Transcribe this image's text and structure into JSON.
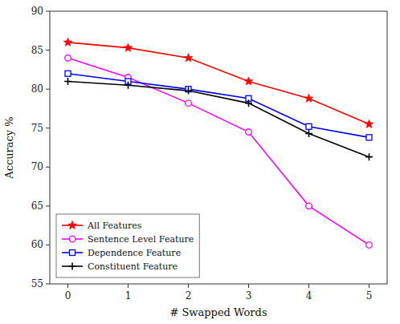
{
  "chart_data": {
    "type": "line",
    "xlabel": "# Swapped Words",
    "ylabel": "Accuracy %",
    "x": [
      0,
      1,
      2,
      3,
      4,
      5
    ],
    "xlim": [
      -0.3,
      5.3
    ],
    "xticks": [
      0,
      1,
      2,
      3,
      4,
      5
    ],
    "ylim": [
      55,
      90
    ],
    "yticks": [
      55,
      60,
      65,
      70,
      75,
      80,
      85,
      90
    ],
    "grid": false,
    "legend": "lower left",
    "series": [
      {
        "name": "All Features",
        "color": "#ff0000",
        "marker": "star",
        "values": [
          86.0,
          85.3,
          84.0,
          81.0,
          78.8,
          75.5
        ]
      },
      {
        "name": "Sentence Level Feature",
        "color": "#ff00ff",
        "marker": "circle",
        "values": [
          84.0,
          81.5,
          78.2,
          74.5,
          65.0,
          60.0
        ]
      },
      {
        "name": "Dependence Feature",
        "color": "#0000ff",
        "marker": "square",
        "values": [
          82.0,
          81.0,
          80.0,
          78.8,
          75.2,
          73.8
        ]
      },
      {
        "name": "Constituent Feature",
        "color": "#000000",
        "marker": "plus",
        "values": [
          81.0,
          80.5,
          79.8,
          78.2,
          74.3,
          71.3
        ]
      }
    ]
  }
}
